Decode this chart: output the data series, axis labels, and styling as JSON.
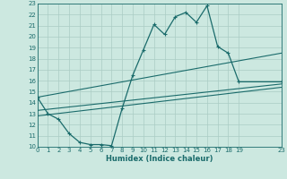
{
  "xlabel": "Humidex (Indice chaleur)",
  "bg_color": "#cce8e0",
  "line_color": "#1a6b6b",
  "grid_color": "#aaccc4",
  "ylim": [
    10,
    23
  ],
  "xlim": [
    0,
    23
  ],
  "yticks": [
    10,
    11,
    12,
    13,
    14,
    15,
    16,
    17,
    18,
    19,
    20,
    21,
    22,
    23
  ],
  "xticks": [
    0,
    1,
    2,
    3,
    4,
    5,
    6,
    7,
    8,
    9,
    10,
    11,
    12,
    13,
    14,
    15,
    16,
    17,
    18,
    19,
    23
  ],
  "line1_x": [
    0,
    1,
    2,
    3,
    4,
    5,
    6,
    7,
    8,
    9,
    10,
    11,
    12,
    13,
    14,
    15,
    16,
    17,
    18,
    19,
    23
  ],
  "line1_y": [
    14.5,
    13.0,
    12.5,
    11.2,
    10.4,
    10.2,
    10.2,
    10.1,
    13.5,
    16.5,
    18.8,
    21.1,
    20.2,
    21.8,
    22.2,
    21.3,
    22.8,
    19.1,
    18.5,
    15.9,
    15.9
  ],
  "line2_x": [
    0,
    23
  ],
  "line2_y": [
    14.5,
    18.5
  ],
  "line3_x": [
    0,
    23
  ],
  "line3_y": [
    13.3,
    15.7
  ],
  "line4_x": [
    0,
    23
  ],
  "line4_y": [
    12.8,
    15.4
  ]
}
